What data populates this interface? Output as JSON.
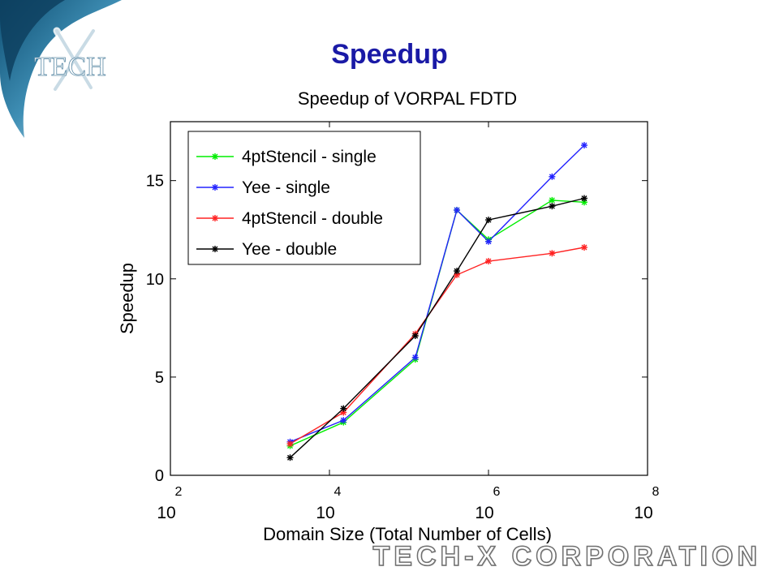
{
  "slide": {
    "title": "Speedup",
    "logo_text": "TECH",
    "footer_text": "TECH-X CORPORATION"
  },
  "colors": {
    "title": "#1a1aa6",
    "logo_swirl": "#1f6c95",
    "series_green": "#00ee00",
    "series_blue": "#2222ff",
    "series_red": "#ff2222",
    "series_black": "#000000"
  },
  "chart_data": {
    "type": "line",
    "title": "Speedup of VORPAL FDTD",
    "xlabel": "Domain Size (Total Number of Cells)",
    "ylabel": "Speedup",
    "x_scale": "log10",
    "xlim": [
      100,
      100000000
    ],
    "ylim": [
      0,
      18
    ],
    "x_ticks": [
      {
        "base": "10",
        "exp": "2"
      },
      {
        "base": "10",
        "exp": "4"
      },
      {
        "base": "10",
        "exp": "6"
      },
      {
        "base": "10",
        "exp": "8"
      }
    ],
    "y_ticks": [
      "0",
      "5",
      "10",
      "15"
    ],
    "grid": false,
    "legend_position": "top-left",
    "x": [
      3200,
      15000,
      120000,
      400000,
      1000000,
      6300000,
      16000000
    ],
    "series": [
      {
        "name": "4ptStencil - single",
        "color": "#00ee00",
        "values": [
          1.5,
          2.7,
          5.9,
          13.5,
          12.0,
          14.0,
          13.9
        ]
      },
      {
        "name": "Yee - single",
        "color": "#2222ff",
        "values": [
          1.7,
          2.8,
          6.0,
          13.5,
          11.9,
          15.2,
          16.8
        ]
      },
      {
        "name": "4ptStencil - double",
        "color": "#ff2222",
        "values": [
          1.6,
          3.2,
          7.2,
          10.2,
          10.9,
          11.3,
          11.6
        ]
      },
      {
        "name": "Yee - double",
        "color": "#000000",
        "values": [
          0.9,
          3.4,
          7.1,
          10.4,
          13.0,
          13.7,
          14.1
        ]
      }
    ]
  }
}
